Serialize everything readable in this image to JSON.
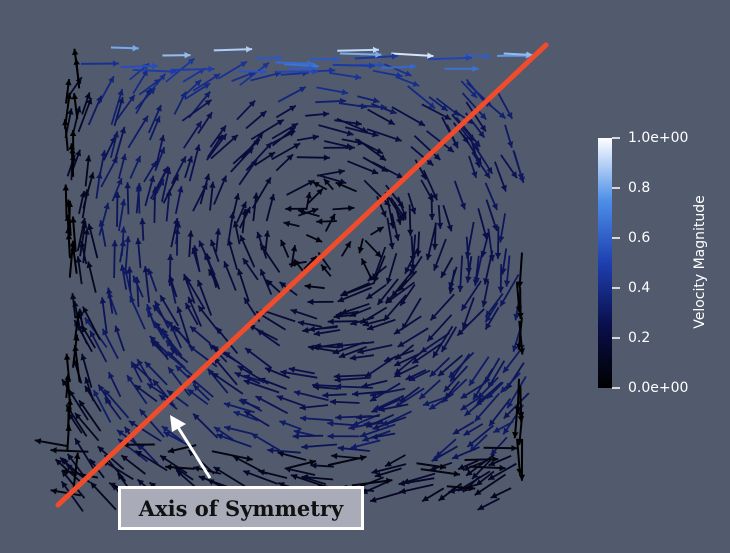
{
  "colorbar": {
    "title": "Velocity Magnitude",
    "range": [
      0,
      1
    ],
    "ticks": [
      {
        "value": 1.0,
        "label": "1.0e+00"
      },
      {
        "value": 0.8,
        "label": "0.8"
      },
      {
        "value": 0.6,
        "label": "0.6"
      },
      {
        "value": 0.4,
        "label": "0.4"
      },
      {
        "value": 0.2,
        "label": "0.2"
      },
      {
        "value": 0.0,
        "label": "0.0e+00"
      }
    ],
    "colors": [
      "#000000",
      "#0a0f4a",
      "#1e3fb0",
      "#4d8fe8",
      "#ffffff"
    ]
  },
  "annotation": {
    "label": "Axis of Symmetry",
    "line_color": "#f04c2c"
  },
  "colors": {
    "background": "#525a6e",
    "callout_fill": "#a9abb8",
    "callout_border": "#ffffff"
  }
}
